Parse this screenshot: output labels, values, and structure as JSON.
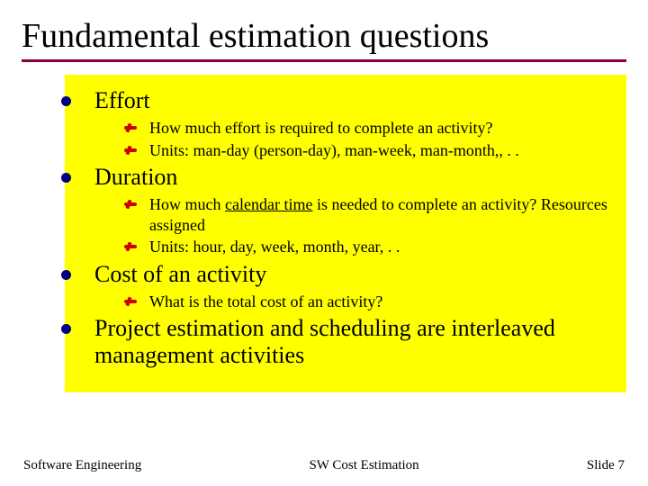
{
  "colors": {
    "title_rule": "#800040",
    "bullet_l1": "#000080",
    "bullet_l2": "#cc0000",
    "content_bg": "#ffff00",
    "background": "#ffffff",
    "text": "#000000"
  },
  "typography": {
    "family": "Times New Roman",
    "title_size_pt": 38,
    "l1_size_pt": 26,
    "l2_size_pt": 18,
    "footer_size_pt": 15
  },
  "title": "Fundamental estimation questions",
  "sections": [
    {
      "heading": "Effort",
      "subitems": [
        {
          "text": "How much effort is required to complete an activity?"
        },
        {
          "text": "Units: man-day (person-day), man-week, man-month,, . ."
        }
      ]
    },
    {
      "heading": "Duration",
      "subitems": [
        {
          "text_pre": "How much ",
          "underline": "calendar time",
          "text_post": " is needed to complete an activity? Resources assigned"
        },
        {
          "text": "Units: hour, day, week, month, year, . ."
        }
      ]
    },
    {
      "heading": "Cost of an activity",
      "subitems": [
        {
          "text": "What is the total cost of an activity?"
        }
      ]
    },
    {
      "heading": "Project estimation and scheduling are interleaved management activities",
      "subitems": []
    }
  ],
  "footer": {
    "left": "Software Engineering",
    "center": "SW Cost Estimation",
    "right": "Slide 7"
  }
}
